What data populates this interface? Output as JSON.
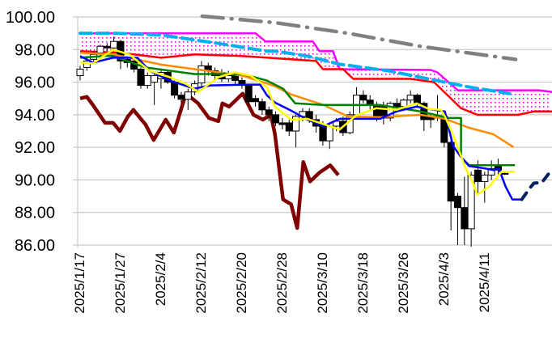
{
  "chart_data": {
    "type": "candlestick",
    "title": "",
    "xlabel": "",
    "ylabel": "",
    "ylim": [
      86,
      100
    ],
    "y_ticks": [
      "100.00",
      "98.00",
      "96.00",
      "94.00",
      "92.00",
      "90.00",
      "88.00",
      "86.00"
    ],
    "y_tick_values": [
      100,
      98,
      96,
      94,
      92,
      90,
      88,
      86
    ],
    "x_ticks": [
      {
        "index": 0,
        "label": "2025/1/17"
      },
      {
        "index": 6,
        "label": "2025/1/27"
      },
      {
        "index": 12,
        "label": "2025/2/4"
      },
      {
        "index": 18,
        "label": "2025/2/12"
      },
      {
        "index": 24,
        "label": "2025/2/20"
      },
      {
        "index": 30,
        "label": "2025/2/28"
      },
      {
        "index": 36,
        "label": "2025/3/10"
      },
      {
        "index": 42,
        "label": "2025/3/18"
      },
      {
        "index": 48,
        "label": "2025/3/26"
      },
      {
        "index": 54,
        "label": "2025/4/3"
      },
      {
        "index": 60,
        "label": "2025/4/11"
      }
    ],
    "grid": true,
    "candles_ohlc": [
      [
        96.4,
        97.0,
        96.1,
        96.8
      ],
      [
        96.9,
        97.6,
        96.7,
        97.3
      ],
      [
        97.4,
        97.9,
        97.2,
        97.7
      ],
      [
        97.8,
        98.3,
        97.6,
        98.2
      ],
      [
        98.2,
        98.4,
        97.9,
        98.1
      ],
      [
        98.1,
        98.8,
        97.9,
        98.5
      ],
      [
        98.5,
        98.6,
        96.8,
        97.3
      ],
      [
        97.4,
        97.6,
        96.9,
        97.2
      ],
      [
        97.3,
        97.5,
        96.6,
        96.8
      ],
      [
        96.8,
        96.9,
        95.6,
        95.8
      ],
      [
        95.8,
        96.6,
        95.6,
        96.4
      ],
      [
        96.0,
        96.5,
        94.6,
        96.4
      ],
      [
        96.2,
        96.8,
        95.6,
        96.6
      ],
      [
        96.6,
        96.7,
        95.9,
        96.0
      ],
      [
        96.0,
        96.1,
        95.0,
        95.2
      ],
      [
        95.2,
        95.4,
        94.7,
        94.95
      ],
      [
        94.95,
        95.6,
        94.3,
        95.4
      ],
      [
        95.4,
        96.1,
        95.2,
        95.9
      ],
      [
        95.95,
        97.3,
        95.7,
        97.0
      ],
      [
        97.0,
        97.2,
        96.4,
        96.7
      ],
      [
        96.7,
        96.9,
        96.2,
        96.4
      ],
      [
        96.6,
        96.8,
        96.0,
        96.2
      ],
      [
        96.2,
        96.7,
        96.0,
        96.4
      ],
      [
        96.4,
        96.6,
        95.8,
        96.1
      ],
      [
        96.1,
        96.3,
        95.6,
        95.8
      ],
      [
        95.8,
        95.9,
        94.6,
        94.8
      ],
      [
        95.0,
        95.2,
        94.5,
        94.8
      ],
      [
        94.8,
        95.0,
        94.0,
        94.3
      ],
      [
        94.3,
        94.5,
        93.6,
        94.0
      ],
      [
        94.0,
        94.2,
        93.3,
        93.5
      ],
      [
        93.5,
        93.8,
        93.1,
        93.4
      ],
      [
        93.5,
        93.7,
        92.7,
        93.0
      ],
      [
        93.0,
        94.0,
        92.0,
        93.9
      ],
      [
        93.9,
        94.4,
        93.6,
        94.2
      ],
      [
        94.2,
        94.4,
        93.5,
        93.7
      ],
      [
        93.7,
        94.0,
        92.9,
        93.3
      ],
      [
        93.3,
        93.6,
        92.1,
        92.4
      ],
      [
        92.4,
        93.5,
        91.9,
        93.3
      ],
      [
        93.3,
        93.8,
        93.0,
        93.6
      ],
      [
        93.6,
        93.9,
        92.7,
        92.9
      ],
      [
        92.9,
        94.2,
        92.8,
        94.0
      ],
      [
        94.0,
        95.7,
        93.9,
        95.2
      ],
      [
        95.2,
        95.5,
        94.7,
        94.9
      ],
      [
        94.9,
        95.2,
        94.2,
        94.6
      ],
      [
        94.6,
        94.8,
        93.6,
        93.9
      ],
      [
        94.5,
        94.8,
        93.4,
        93.8
      ],
      [
        93.8,
        94.8,
        93.6,
        94.7
      ],
      [
        94.7,
        95.0,
        94.3,
        94.5
      ],
      [
        94.5,
        95.0,
        94.3,
        94.9
      ],
      [
        94.9,
        95.5,
        94.7,
        95.2
      ],
      [
        95.2,
        95.3,
        94.5,
        94.7
      ],
      [
        94.7,
        94.8,
        93.0,
        93.7
      ],
      [
        93.9,
        94.1,
        93.2,
        93.7
      ],
      [
        93.8,
        95.2,
        93.6,
        93.9
      ],
      [
        93.9,
        94.0,
        92.0,
        92.3
      ],
      [
        92.3,
        92.4,
        86.9,
        88.7
      ],
      [
        89.0,
        89.2,
        86.0,
        88.3
      ],
      [
        88.3,
        90.2,
        86.0,
        87.0
      ],
      [
        87.0,
        90.5,
        85.9,
        90.3
      ],
      [
        90.6,
        91.2,
        89.2,
        89.9
      ],
      [
        89.9,
        90.5,
        88.6,
        90.3
      ],
      [
        90.3,
        91.2,
        90.0,
        90.7
      ],
      [
        90.9,
        91.3,
        90.3,
        90.6
      ],
      [
        90.4,
        90.5,
        90.3,
        90.4
      ]
    ],
    "cloud": {
      "upper": "senkou_b",
      "lower": "senkou_a",
      "fill": "#ff00ff"
    },
    "series": [
      {
        "name": "senkou_b",
        "color": "#ff00ff",
        "style": "solid",
        "points": [
          [
            0,
            99.0
          ],
          [
            26,
            99.0
          ],
          [
            27.5,
            98.5
          ],
          [
            34.5,
            98.5
          ],
          [
            35.5,
            97.9
          ],
          [
            37.5,
            97.9
          ],
          [
            38.5,
            96.8
          ],
          [
            52,
            96.75
          ],
          [
            53,
            96.6
          ],
          [
            56,
            95.5
          ],
          [
            68,
            95.5
          ],
          [
            70,
            95.4
          ]
        ]
      },
      {
        "name": "senkou_a",
        "color": "#ff0000",
        "style": "solid",
        "points": [
          [
            0,
            97.9
          ],
          [
            6,
            97.8
          ],
          [
            12,
            97.5
          ],
          [
            17,
            97.7
          ],
          [
            24,
            97.6
          ],
          [
            29,
            97.47
          ],
          [
            35,
            97.3
          ],
          [
            36,
            96.8
          ],
          [
            39,
            96.8
          ],
          [
            40.5,
            96.2
          ],
          [
            49,
            96.2
          ],
          [
            52.5,
            96.0
          ],
          [
            56.5,
            94.4
          ],
          [
            58.9,
            94.0
          ],
          [
            65,
            94.0
          ],
          [
            67.3,
            94.2
          ],
          [
            70,
            94.2
          ]
        ]
      },
      {
        "name": "long_ma",
        "color": "#00b0f0",
        "style": "dashed",
        "points": [
          [
            0,
            99.0
          ],
          [
            5,
            99.0
          ],
          [
            12,
            98.9
          ],
          [
            21.7,
            98.3
          ],
          [
            27.7,
            97.9
          ],
          [
            29,
            97.9
          ],
          [
            33.7,
            97.6
          ],
          [
            38.5,
            97.1
          ],
          [
            45.7,
            96.7
          ],
          [
            52.9,
            96.1
          ],
          [
            57.7,
            95.7
          ],
          [
            63.7,
            95.3
          ]
        ]
      },
      {
        "name": "tenkan",
        "color": "#0000ff",
        "style": "solid",
        "points": [
          [
            0,
            97.6
          ],
          [
            1.9,
            97.2
          ],
          [
            4.9,
            97.5
          ],
          [
            8.5,
            97.5
          ],
          [
            10.3,
            96.7
          ],
          [
            13.3,
            96.1
          ],
          [
            16.9,
            95.6
          ],
          [
            19.3,
            95.8
          ],
          [
            24.7,
            95.85
          ],
          [
            26.7,
            95.85
          ],
          [
            27.7,
            95.2
          ],
          [
            28.9,
            94.75
          ],
          [
            31.3,
            94.25
          ],
          [
            33.7,
            93.7
          ],
          [
            36.1,
            93.3
          ],
          [
            38.5,
            93.75
          ],
          [
            44.5,
            93.75
          ],
          [
            46.9,
            94.2
          ],
          [
            49.9,
            94.5
          ],
          [
            51.7,
            94.35
          ],
          [
            54.1,
            94.2
          ],
          [
            55.3,
            92.1
          ],
          [
            56.5,
            91.4
          ],
          [
            57.7,
            90.85
          ],
          [
            60.1,
            90.7
          ],
          [
            61.3,
            90.6
          ],
          [
            62.1,
            90.7
          ],
          [
            63.1,
            89.6
          ],
          [
            64.1,
            88.8
          ],
          [
            65.5,
            88.8
          ]
        ]
      },
      {
        "name": "kijun",
        "color": "#008000",
        "style": "solid",
        "points": [
          [
            0,
            97.5
          ],
          [
            3.7,
            97.6
          ],
          [
            4.9,
            97.6
          ],
          [
            9.7,
            96.9
          ],
          [
            16.9,
            96.5
          ],
          [
            24.1,
            96.5
          ],
          [
            27.7,
            96.1
          ],
          [
            30.1,
            95.6
          ],
          [
            31.9,
            94.7
          ],
          [
            36.1,
            94.6
          ],
          [
            44.5,
            94.6
          ],
          [
            50.5,
            94.2
          ],
          [
            54.7,
            93.8
          ],
          [
            56.5,
            93.8
          ],
          [
            56.5,
            91.4
          ],
          [
            57.7,
            90.9
          ],
          [
            64.5,
            90.9
          ]
        ]
      },
      {
        "name": "ma25",
        "color": "#ff8c00",
        "style": "solid",
        "points": [
          [
            0,
            97.8
          ],
          [
            4.9,
            97.7
          ],
          [
            12.1,
            97.07
          ],
          [
            18.1,
            96.74
          ],
          [
            24.1,
            96.4
          ],
          [
            28.9,
            95.75
          ],
          [
            31.3,
            95.25
          ],
          [
            36.1,
            94.6
          ],
          [
            39.7,
            93.9
          ],
          [
            44.5,
            93.85
          ],
          [
            50.5,
            94.0
          ],
          [
            54.1,
            93.75
          ],
          [
            57.7,
            93.2
          ],
          [
            61.3,
            92.8
          ],
          [
            64.3,
            92.0
          ]
        ]
      },
      {
        "name": "ma5",
        "color": "#ffff00",
        "style": "solid",
        "points": [
          [
            0,
            97.2
          ],
          [
            1.9,
            97.15
          ],
          [
            4.9,
            98.0
          ],
          [
            7.3,
            97.7
          ],
          [
            10.3,
            96.7
          ],
          [
            13.3,
            96.3
          ],
          [
            15.7,
            95.9
          ],
          [
            17.5,
            95.4
          ],
          [
            20.5,
            96.3
          ],
          [
            22.9,
            96.6
          ],
          [
            25.3,
            96.4
          ],
          [
            27.7,
            95.7
          ],
          [
            28.9,
            94.5
          ],
          [
            31.3,
            93.7
          ],
          [
            33.7,
            93.75
          ],
          [
            38.5,
            93.1
          ],
          [
            40.9,
            93.95
          ],
          [
            43.9,
            94.4
          ],
          [
            46.9,
            94.3
          ],
          [
            49.9,
            94.7
          ],
          [
            51.7,
            94.35
          ],
          [
            53.5,
            94.3
          ],
          [
            54.1,
            93.9
          ],
          [
            55.3,
            92.8
          ],
          [
            57.1,
            90.8
          ],
          [
            58.3,
            89.8
          ],
          [
            58.9,
            89.1
          ],
          [
            60.7,
            89.6
          ],
          [
            61.9,
            90.2
          ],
          [
            62.5,
            90.5
          ],
          [
            64.5,
            90.5
          ]
        ]
      },
      {
        "name": "chikou",
        "color": "#800000",
        "style": "solid",
        "points": [
          [
            0,
            95.0
          ],
          [
            1,
            95.1
          ],
          [
            1.9,
            94.6
          ],
          [
            3.7,
            93.5
          ],
          [
            4.9,
            93.5
          ],
          [
            5.9,
            93.0
          ],
          [
            7.1,
            93.9
          ],
          [
            7.9,
            94.3
          ],
          [
            9.7,
            93.4
          ],
          [
            10.9,
            92.45
          ],
          [
            12.7,
            93.7
          ],
          [
            13.9,
            92.9
          ],
          [
            15.7,
            95.3
          ],
          [
            17.5,
            94.7
          ],
          [
            19.1,
            93.8
          ],
          [
            20.5,
            93.6
          ],
          [
            21.1,
            94.7
          ],
          [
            22.1,
            94.5
          ],
          [
            24.1,
            95.3
          ],
          [
            25.7,
            94.0
          ],
          [
            27.1,
            93.7
          ],
          [
            28.3,
            94.0
          ],
          [
            28.9,
            92.8
          ],
          [
            30.1,
            88.8
          ],
          [
            31.3,
            88.5
          ],
          [
            32.2,
            87.05
          ],
          [
            33.1,
            91.1
          ],
          [
            34.1,
            89.9
          ],
          [
            35.5,
            90.45
          ],
          [
            37.1,
            90.9
          ],
          [
            38.3,
            90.3
          ]
        ]
      },
      {
        "name": "forecast",
        "color": "#002060",
        "style": "dashed",
        "points": [
          [
            65.5,
            88.8
          ],
          [
            66.7,
            89.5
          ],
          [
            67.3,
            89.8
          ],
          [
            68.5,
            89.85
          ],
          [
            69.9,
            90.6
          ]
        ]
      },
      {
        "name": "trend_line",
        "color": "#808080",
        "style": "dashdot",
        "points": [
          [
            18.1,
            100.05
          ],
          [
            28.9,
            99.65
          ],
          [
            39.7,
            99.0
          ],
          [
            50.5,
            98.2
          ],
          [
            64.6,
            97.4
          ]
        ]
      }
    ],
    "colors": {
      "grid": "#bfbfbf",
      "up_candle": "#ffffff",
      "down_candle": "#000000",
      "candle_edge": "#000000"
    }
  }
}
